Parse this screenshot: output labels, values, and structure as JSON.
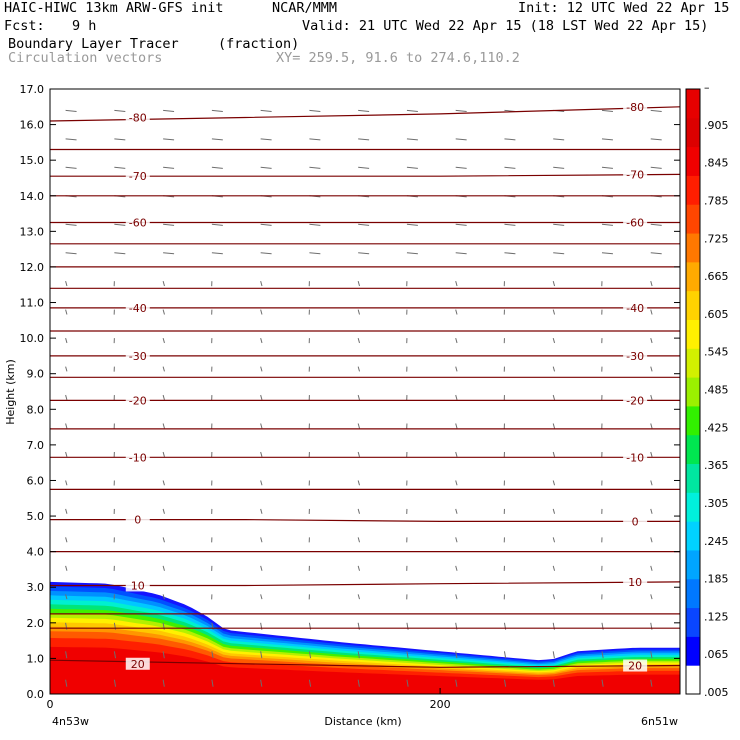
{
  "header": {
    "model": "HAIC-HIWC 13km ARW-GFS init",
    "org": "NCAR/MMM",
    "init": "Init: 12 UTC Wed 22 Apr 15",
    "fcst_label": "Fcst:",
    "fcst_value": "9 h",
    "valid": "Valid: 21 UTC Wed 22 Apr 15 (18 LST Wed 22 Apr 15)",
    "field": "Boundary Layer Tracer",
    "field_units": "(fraction)",
    "overlay": "Circulation vectors",
    "xy": "XY= 259.5, 91.6 to 274.6,110.2"
  },
  "chart_data": {
    "type": "heatmap",
    "xlabel": "Distance (km)",
    "ylabel": "Height (km)",
    "xlim": [
      0,
      323
    ],
    "ylim": [
      0,
      17
    ],
    "x_ticks": [
      0,
      200
    ],
    "y_ticks": [
      "0.0",
      "1.0",
      "2.0",
      "3.0",
      "4.0",
      "5.0",
      "6.0",
      "7.0",
      "8.0",
      "9.0",
      "10.0",
      "11.0",
      "12.0",
      "13.0",
      "14.0",
      "15.0",
      "16.0",
      "17.0"
    ],
    "x_end_labels": {
      "left": "4n53w",
      "right": "6n51w"
    },
    "colorbar": {
      "labels": [
        ".005",
        ".065",
        ".125",
        ".185",
        ".245",
        ".305",
        ".365",
        ".425",
        ".485",
        ".545",
        ".605",
        ".665",
        ".725",
        ".785",
        ".845",
        ".905",
        "–"
      ],
      "colors": [
        "#ffffff",
        "#0000ff",
        "#0a46ff",
        "#0078ff",
        "#00a5ff",
        "#00d2ff",
        "#00f0dc",
        "#00e6a0",
        "#00e650",
        "#32f000",
        "#9bf000",
        "#d2f000",
        "#fff000",
        "#ffd200",
        "#ffaa00",
        "#ff7800",
        "#ff4600",
        "#ff1e00",
        "#f00000",
        "#dc0000",
        "#e60000"
      ]
    },
    "temperature_contours": [
      {
        "label": "-80",
        "height": [
          16.1,
          16.2,
          16.3,
          16.5
        ]
      },
      {
        "label": "-70",
        "height": [
          14.55,
          14.55,
          14.55,
          14.6
        ]
      },
      {
        "label": "-60",
        "height": [
          13.25,
          13.25,
          13.25,
          13.25
        ]
      },
      {
        "label": "-40",
        "height": [
          10.85,
          10.85,
          10.85,
          10.85
        ]
      },
      {
        "label": "-30",
        "height": [
          9.5,
          9.5,
          9.5,
          9.5
        ]
      },
      {
        "label": "-20",
        "height": [
          8.25,
          8.25,
          8.25,
          8.25
        ]
      },
      {
        "label": "-10",
        "height": [
          6.65,
          6.65,
          6.65,
          6.65
        ]
      },
      {
        "label": "0",
        "height": [
          4.9,
          4.9,
          4.85,
          4.85
        ]
      },
      {
        "label": "10",
        "height": [
          3.05,
          3.05,
          3.1,
          3.15
        ]
      },
      {
        "label": "20",
        "height": [
          0.95,
          0.85,
          0.75,
          0.8
        ]
      }
    ],
    "unlabeled_contours": [
      15.3,
      14.0,
      12.65,
      12.0,
      11.4,
      10.2,
      8.9,
      7.45,
      5.75,
      4.0,
      2.25,
      1.85
    ],
    "tracer_top_km": {
      "x": [
        0,
        30,
        55,
        70,
        80,
        90,
        150,
        200,
        240,
        250,
        258,
        270,
        300,
        323
      ],
      "top": [
        3.15,
        3.1,
        2.8,
        2.5,
        2.2,
        1.8,
        1.45,
        1.2,
        1.0,
        0.95,
        0.98,
        1.2,
        1.3,
        1.3
      ]
    }
  }
}
